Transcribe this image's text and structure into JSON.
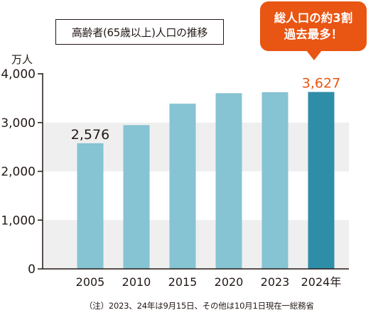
{
  "chart_data": {
    "type": "bar",
    "title": "高齢者(65歳以上)人口の推移",
    "unit_label": "万人",
    "categories": [
      "2005",
      "2010",
      "2015",
      "2020",
      "2023",
      "2024年"
    ],
    "values": [
      2576,
      2948,
      3387,
      3602,
      3623,
      3627
    ],
    "labeled_values": {
      "0": "2,576",
      "5": "3,627"
    },
    "highlight_index": 5,
    "ylim": [
      0,
      4000
    ],
    "yticks": [
      0,
      1000,
      2000,
      3000,
      4000
    ],
    "ytick_labels": [
      "0",
      "1,000",
      "2,000",
      "3,000",
      "4,000"
    ],
    "grid": "alternating horizontal bands",
    "colors": {
      "bar": "#86c3d3",
      "bar_highlight": "#2f8ea7",
      "band": "#efefef",
      "axis": "#231815",
      "highlight_label": "#e95513",
      "callout": "#e95513"
    },
    "callout": {
      "line1": "総人口の約3割",
      "line2": "過去最多！"
    },
    "note": "（注）2023、24年は9月15日、その他は10月1日現在一総務省"
  }
}
